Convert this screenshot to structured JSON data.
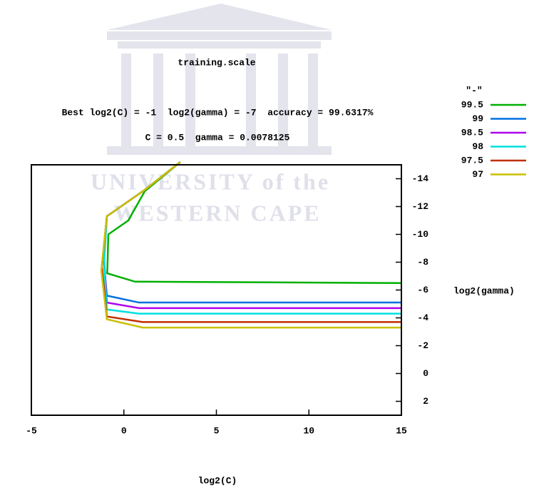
{
  "chart_data": {
    "type": "line",
    "title": "training.scale",
    "subtitle": [
      "Best log2(C) = -1  log2(gamma) = -7  accuracy = 99.6317%",
      "C = 0.5  gamma = 0.0078125"
    ],
    "watermark": [
      "UNIVERSITY of the",
      "WESTERN CAPE"
    ],
    "x_label": "log2(C)",
    "y_label": "log2(gamma)",
    "legend_title": "\"-\"",
    "legend": "right",
    "yaxis_side": "right",
    "y_reversed": true,
    "xlim": [
      -5,
      15
    ],
    "ylim": [
      -15,
      3
    ],
    "xticks": [
      -5,
      0,
      5,
      10,
      15
    ],
    "yticks": [
      -14,
      -12,
      -10,
      -8,
      -6,
      -4,
      -2,
      0,
      2
    ],
    "series": [
      {
        "name": "99.5",
        "color": "#00b000",
        "x": [
          3.05,
          1.13,
          0.24,
          -0.84,
          -0.9,
          0.6,
          15
        ],
        "values": [
          -15.2,
          -13.1,
          -11.0,
          -10.0,
          -7.2,
          -6.6,
          -6.5
        ]
      },
      {
        "name": "99",
        "color": "#0070e0",
        "x": [
          3.05,
          1.13,
          -0.92,
          -1.11,
          -0.92,
          0.82,
          15
        ],
        "values": [
          -15.2,
          -13.2,
          -11.3,
          -8.4,
          -5.6,
          -5.1,
          -5.1
        ]
      },
      {
        "name": "98.5",
        "color": "#b000f0",
        "x": [
          3.05,
          1.13,
          -0.92,
          -1.07,
          -0.92,
          0.82,
          15
        ],
        "values": [
          -15.2,
          -13.2,
          -11.3,
          -8.2,
          -5.1,
          -4.7,
          -4.7
        ]
      },
      {
        "name": "98",
        "color": "#00e0e0",
        "x": [
          3.05,
          1.13,
          -0.92,
          -1.07,
          -0.92,
          0.82,
          15
        ],
        "values": [
          -15.2,
          -13.2,
          -11.3,
          -7.9,
          -4.6,
          -4.3,
          -4.3
        ]
      },
      {
        "name": "97.5",
        "color": "#c03000",
        "x": [
          3.05,
          1.13,
          -0.92,
          -1.19,
          -0.92,
          1.01,
          15
        ],
        "values": [
          -15.2,
          -13.2,
          -11.3,
          -7.7,
          -4.1,
          -3.7,
          -3.7
        ]
      },
      {
        "name": "97",
        "color": "#c8c000",
        "x": [
          3.05,
          1.13,
          -0.92,
          -1.22,
          -0.92,
          1.01,
          15
        ],
        "values": [
          -15.2,
          -13.2,
          -11.3,
          -7.4,
          -3.9,
          -3.3,
          -3.3
        ]
      }
    ]
  }
}
